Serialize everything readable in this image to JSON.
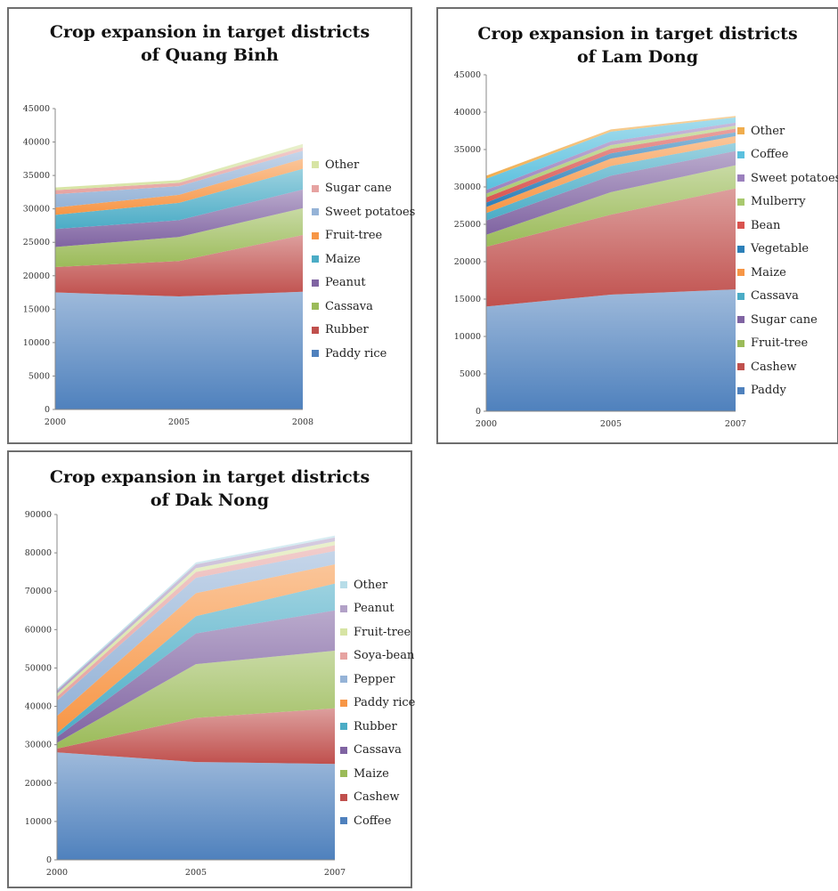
{
  "chart_data": [
    {
      "type": "area",
      "stacked": true,
      "title_line1": "Crop expansion in target districts",
      "title_line2": "of Quang Binh",
      "x": [
        "2000",
        "2005",
        "2008"
      ],
      "ylim": [
        0,
        45000
      ],
      "yticks": [
        "0",
        "5000",
        "10000",
        "15000",
        "20000",
        "25000",
        "30000",
        "35000",
        "40000",
        "45000"
      ],
      "legend_position": "right",
      "series": [
        {
          "name": "Paddy rice",
          "color": "#4f81bd",
          "values": [
            17500,
            16900,
            17600
          ]
        },
        {
          "name": "Rubber",
          "color": "#c0504d",
          "values": [
            3800,
            5300,
            8500
          ]
        },
        {
          "name": "Cassava",
          "color": "#9bbb59",
          "values": [
            3000,
            3600,
            4000
          ]
        },
        {
          "name": "Peanut",
          "color": "#8064a2",
          "values": [
            2700,
            2500,
            2800
          ]
        },
        {
          "name": "Maize",
          "color": "#4bacc6",
          "values": [
            2100,
            2600,
            3100
          ]
        },
        {
          "name": "Fruit-tree",
          "color": "#f79646",
          "values": [
            1100,
            1200,
            1500
          ]
        },
        {
          "name": "Sweet potatoes",
          "color": "#95b3d7",
          "values": [
            2000,
            1300,
            1200
          ]
        },
        {
          "name": "Sugar cane",
          "color": "#e6a3a1",
          "values": [
            600,
            500,
            500
          ]
        },
        {
          "name": "Other",
          "color": "#d7e4a4",
          "values": [
            400,
            400,
            500
          ]
        }
      ]
    },
    {
      "type": "area",
      "stacked": true,
      "title_line1": "Crop expansion in target districts",
      "title_line2": "of Lam Dong",
      "x": [
        "2000",
        "2005",
        "2007"
      ],
      "ylim": [
        0,
        45000
      ],
      "yticks": [
        "0",
        "5000",
        "10000",
        "15000",
        "20000",
        "25000",
        "30000",
        "35000",
        "40000",
        "45000"
      ],
      "legend_position": "right",
      "series": [
        {
          "name": "Paddy",
          "color": "#4f81bd",
          "values": [
            14000,
            15600,
            16300
          ]
        },
        {
          "name": "Cashew",
          "color": "#c0504d",
          "values": [
            8000,
            10700,
            13500
          ]
        },
        {
          "name": "Fruit-tree",
          "color": "#9bbb59",
          "values": [
            1600,
            3000,
            3100
          ]
        },
        {
          "name": "Sugar cane",
          "color": "#8064a2",
          "values": [
            1900,
            2200,
            1900
          ]
        },
        {
          "name": "Cassava",
          "color": "#4bacc6",
          "values": [
            1000,
            1300,
            1100
          ]
        },
        {
          "name": "Maize",
          "color": "#f79646",
          "values": [
            800,
            1000,
            900
          ]
        },
        {
          "name": "Vegetable",
          "color": "#2c7fb8",
          "values": [
            600,
            700,
            500
          ]
        },
        {
          "name": "Bean",
          "color": "#d9534f",
          "values": [
            700,
            600,
            500
          ]
        },
        {
          "name": "Mulberry",
          "color": "#a9c96e",
          "values": [
            500,
            500,
            400
          ]
        },
        {
          "name": "Sweet potatoes",
          "color": "#9b80bd",
          "values": [
            500,
            500,
            400
          ]
        },
        {
          "name": "Coffee",
          "color": "#5bc0de",
          "values": [
            1500,
            1300,
            700
          ]
        },
        {
          "name": "Other",
          "color": "#f0ad4e",
          "values": [
            400,
            300,
            200
          ]
        }
      ]
    },
    {
      "type": "area",
      "stacked": true,
      "title_line1": "Crop expansion in target districts",
      "title_line2": "of Dak Nong",
      "x": [
        "2000",
        "2005",
        "2007"
      ],
      "ylim": [
        0,
        90000
      ],
      "yticks": [
        "0",
        "10000",
        "20000",
        "30000",
        "40000",
        "50000",
        "60000",
        "70000",
        "80000",
        "90000"
      ],
      "legend_position": "right",
      "series": [
        {
          "name": "Coffee",
          "color": "#4f81bd",
          "values": [
            28000,
            25500,
            25000
          ]
        },
        {
          "name": "Cashew",
          "color": "#c0504d",
          "values": [
            1000,
            11500,
            14500
          ]
        },
        {
          "name": "Maize",
          "color": "#9bbb59",
          "values": [
            1500,
            14000,
            15000
          ]
        },
        {
          "name": "Cassava",
          "color": "#8064a2",
          "values": [
            1500,
            8000,
            10500
          ]
        },
        {
          "name": "Rubber",
          "color": "#4bacc6",
          "values": [
            1000,
            4500,
            7000
          ]
        },
        {
          "name": "Paddy rice",
          "color": "#f79646",
          "values": [
            4500,
            6000,
            5000
          ]
        },
        {
          "name": "Pepper",
          "color": "#95b3d7",
          "values": [
            4000,
            4000,
            3500
          ]
        },
        {
          "name": "Soya-bean",
          "color": "#e6a3a1",
          "values": [
            1000,
            1500,
            1500
          ]
        },
        {
          "name": "Fruit-tree",
          "color": "#d7e4a4",
          "values": [
            800,
            1000,
            1000
          ]
        },
        {
          "name": "Peanut",
          "color": "#b2a1c7",
          "values": [
            800,
            1000,
            1000
          ]
        },
        {
          "name": "Other",
          "color": "#b7dde8",
          "values": [
            400,
            500,
            500
          ]
        }
      ]
    }
  ]
}
